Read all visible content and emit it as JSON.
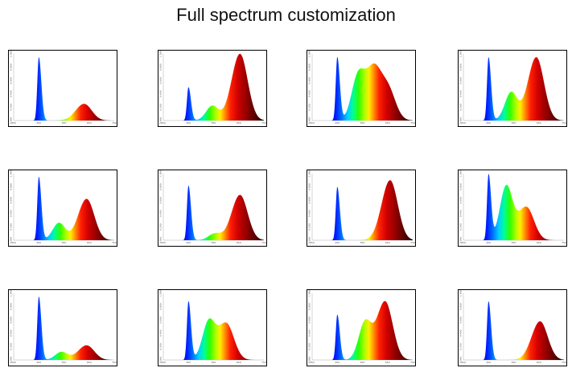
{
  "title": "Full spectrum customization",
  "chart_data": {
    "type": "area",
    "title": "Full spectrum customization",
    "layout": "3 rows x 4 columns of small spectrum panels",
    "x_axis": {
      "unit": "nm",
      "range": [
        350,
        750
      ],
      "ticks": [
        "350",
        "450",
        "550",
        "650",
        "750"
      ]
    },
    "y_axis": {
      "range": [
        0,
        1
      ],
      "ticks": [
        "0.000",
        "0.200",
        "0.400",
        "0.600",
        "0.800",
        "1.000"
      ]
    },
    "fill": "wavelength-colored gradient (violet/blue -> cyan -> green -> yellow -> red -> dark red)",
    "panels": [
      {
        "blue_peak": 0.95,
        "peaks": [
          {
            "nm": 450,
            "h": 0.95
          },
          {
            "nm": 630,
            "h": 0.25
          }
        ]
      },
      {
        "blue_peak": 0.5,
        "peaks": [
          {
            "nm": 450,
            "h": 0.5
          },
          {
            "nm": 545,
            "h": 0.22
          },
          {
            "nm": 655,
            "h": 1.0
          }
        ]
      },
      {
        "blue_peak": 0.95,
        "peaks": [
          {
            "nm": 450,
            "h": 0.95
          },
          {
            "nm": 530,
            "h": 0.58
          },
          {
            "nm": 590,
            "h": 0.72
          },
          {
            "nm": 650,
            "h": 0.48
          }
        ]
      },
      {
        "blue_peak": 0.95,
        "peaks": [
          {
            "nm": 450,
            "h": 0.95
          },
          {
            "nm": 540,
            "h": 0.42
          },
          {
            "nm": 640,
            "h": 0.95
          }
        ]
      },
      {
        "blue_peak": 0.95,
        "peaks": [
          {
            "nm": 450,
            "h": 0.95
          },
          {
            "nm": 530,
            "h": 0.26
          },
          {
            "nm": 640,
            "h": 0.62
          }
        ]
      },
      {
        "blue_peak": 0.82,
        "peaks": [
          {
            "nm": 450,
            "h": 0.82
          },
          {
            "nm": 555,
            "h": 0.1
          },
          {
            "nm": 655,
            "h": 0.68
          }
        ]
      },
      {
        "blue_peak": 0.8,
        "peaks": [
          {
            "nm": 450,
            "h": 0.8
          },
          {
            "nm": 660,
            "h": 0.9
          }
        ]
      },
      {
        "blue_peak": 0.98,
        "peaks": [
          {
            "nm": 450,
            "h": 0.98
          },
          {
            "nm": 520,
            "h": 0.8
          },
          {
            "nm": 600,
            "h": 0.5
          }
        ]
      },
      {
        "blue_peak": 0.95,
        "peaks": [
          {
            "nm": 450,
            "h": 0.95
          },
          {
            "nm": 540,
            "h": 0.12
          },
          {
            "nm": 640,
            "h": 0.22
          }
        ]
      },
      {
        "blue_peak": 0.88,
        "peaks": [
          {
            "nm": 450,
            "h": 0.88
          },
          {
            "nm": 530,
            "h": 0.55
          },
          {
            "nm": 600,
            "h": 0.55
          }
        ]
      },
      {
        "blue_peak": 0.68,
        "peaks": [
          {
            "nm": 450,
            "h": 0.68
          },
          {
            "nm": 560,
            "h": 0.55
          },
          {
            "nm": 640,
            "h": 0.88
          }
        ]
      },
      {
        "blue_peak": 0.88,
        "peaks": [
          {
            "nm": 450,
            "h": 0.88
          },
          {
            "nm": 655,
            "h": 0.58
          }
        ]
      }
    ]
  }
}
